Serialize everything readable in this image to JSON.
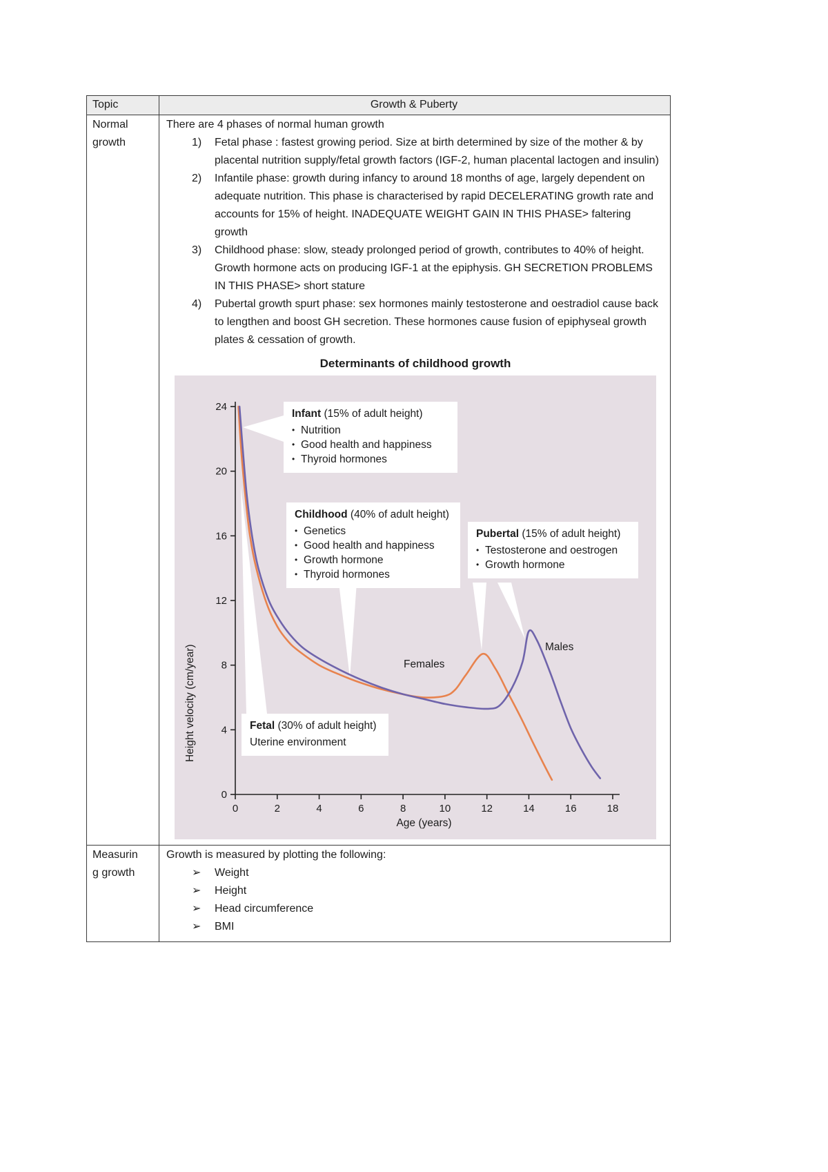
{
  "header": {
    "topic_label": "Topic",
    "title": "Growth & Puberty"
  },
  "normal_growth": {
    "topic": "Normal\ngrowth",
    "intro": "There are 4 phases of normal human growth",
    "items": [
      {
        "num": "1)",
        "text": "Fetal phase : fastest growing period. Size at birth determined by size of the mother & by placental nutrition supply/fetal growth factors (IGF-2, human placental lactogen and insulin)"
      },
      {
        "num": "2)",
        "text": "Infantile phase: growth during infancy to around 18 months of age, largely dependent on adequate nutrition. This phase is characterised by rapid DECELERATING growth rate and accounts for 15% of height. INADEQUATE WEIGHT GAIN IN THIS PHASE> faltering growth"
      },
      {
        "num": "3)",
        "text": "Childhood phase: slow, steady prolonged period of growth, contributes to 40% of height. Growth hormone acts on producing IGF-1 at the epiphysis. GH SECRETION PROBLEMS IN THIS PHASE> short stature"
      },
      {
        "num": "4)",
        "text": "Pubertal growth spurt phase: sex hormones mainly testosterone and oestradiol cause back to lengthen and boost GH secretion. These hormones cause fusion of epiphyseal growth plates & cessation of growth."
      }
    ]
  },
  "measuring_growth": {
    "topic": "Measurin\ng growth",
    "intro": "Growth is measured by plotting the following:",
    "marker": "➢",
    "bullets": [
      "Weight",
      "Height",
      "Head circumference",
      "BMI"
    ]
  },
  "chart": {
    "title": "Determinants of childhood growth",
    "bullet_marker": "•",
    "annotations": {
      "infant": {
        "name": "Infant",
        "suffix": " (15% of adult height)",
        "bullets": [
          "Nutrition",
          "Good health and happiness",
          "Thyroid hormones"
        ]
      },
      "childhood": {
        "name": "Childhood",
        "suffix": " (40% of adult height)",
        "bullets": [
          "Genetics",
          "Good health and happiness",
          "Growth hormone",
          "Thyroid hormones"
        ]
      },
      "pubertal": {
        "name": "Pubertal",
        "suffix": " (15% of adult height)",
        "bullets": [
          "Testosterone and oestrogen",
          "Growth hormone"
        ]
      },
      "fetal": {
        "name": "Fetal",
        "suffix": " (30% of adult height)",
        "line2": "Uterine environment"
      }
    },
    "series_labels": {
      "females": "Females",
      "males": "Males"
    }
  },
  "chart_data": {
    "type": "line",
    "title": "Determinants of childhood growth",
    "xlabel": "Age (years)",
    "ylabel": "Height velocity (cm/year)",
    "xlim": [
      0,
      18
    ],
    "ylim": [
      0,
      24
    ],
    "x_ticks": [
      0,
      2,
      4,
      6,
      8,
      10,
      12,
      14,
      16,
      18
    ],
    "y_ticks": [
      0,
      4,
      8,
      12,
      16,
      20,
      24
    ],
    "grid": false,
    "legend_position": "inline-labels",
    "series": [
      {
        "name": "Females",
        "color": "#e8834e",
        "points": [
          [
            0.15,
            24
          ],
          [
            0.3,
            21
          ],
          [
            0.5,
            18.2
          ],
          [
            0.7,
            16
          ],
          [
            1,
            14
          ],
          [
            1.5,
            11.8
          ],
          [
            2,
            10.4
          ],
          [
            2.5,
            9.5
          ],
          [
            3,
            8.9
          ],
          [
            4,
            8.0
          ],
          [
            5,
            7.4
          ],
          [
            6,
            6.9
          ],
          [
            7,
            6.5
          ],
          [
            8,
            6.2
          ],
          [
            9,
            6.0
          ],
          [
            10,
            6.1
          ],
          [
            10.5,
            6.5
          ],
          [
            11,
            7.4
          ],
          [
            11.8,
            8.7
          ],
          [
            12.4,
            7.8
          ],
          [
            13,
            6.3
          ],
          [
            13.6,
            4.8
          ],
          [
            14.2,
            3.2
          ],
          [
            14.7,
            1.9
          ],
          [
            15.1,
            0.9
          ]
        ]
      },
      {
        "name": "Males",
        "color": "#6f64ab",
        "points": [
          [
            0.2,
            24
          ],
          [
            0.35,
            21.5
          ],
          [
            0.55,
            18.5
          ],
          [
            0.8,
            16
          ],
          [
            1.1,
            14
          ],
          [
            1.6,
            12
          ],
          [
            2.1,
            10.8
          ],
          [
            2.6,
            9.9
          ],
          [
            3.2,
            9.1
          ],
          [
            4,
            8.4
          ],
          [
            5,
            7.7
          ],
          [
            6,
            7.1
          ],
          [
            7,
            6.6
          ],
          [
            8,
            6.2
          ],
          [
            9,
            5.9
          ],
          [
            10,
            5.6
          ],
          [
            11,
            5.4
          ],
          [
            12,
            5.3
          ],
          [
            12.6,
            5.5
          ],
          [
            13.2,
            6.6
          ],
          [
            13.7,
            8.2
          ],
          [
            14,
            10.1
          ],
          [
            14.4,
            9.5
          ],
          [
            15,
            7.6
          ],
          [
            15.5,
            5.8
          ],
          [
            16,
            4.1
          ],
          [
            16.5,
            2.8
          ],
          [
            17,
            1.7
          ],
          [
            17.4,
            1.0
          ]
        ]
      }
    ]
  }
}
